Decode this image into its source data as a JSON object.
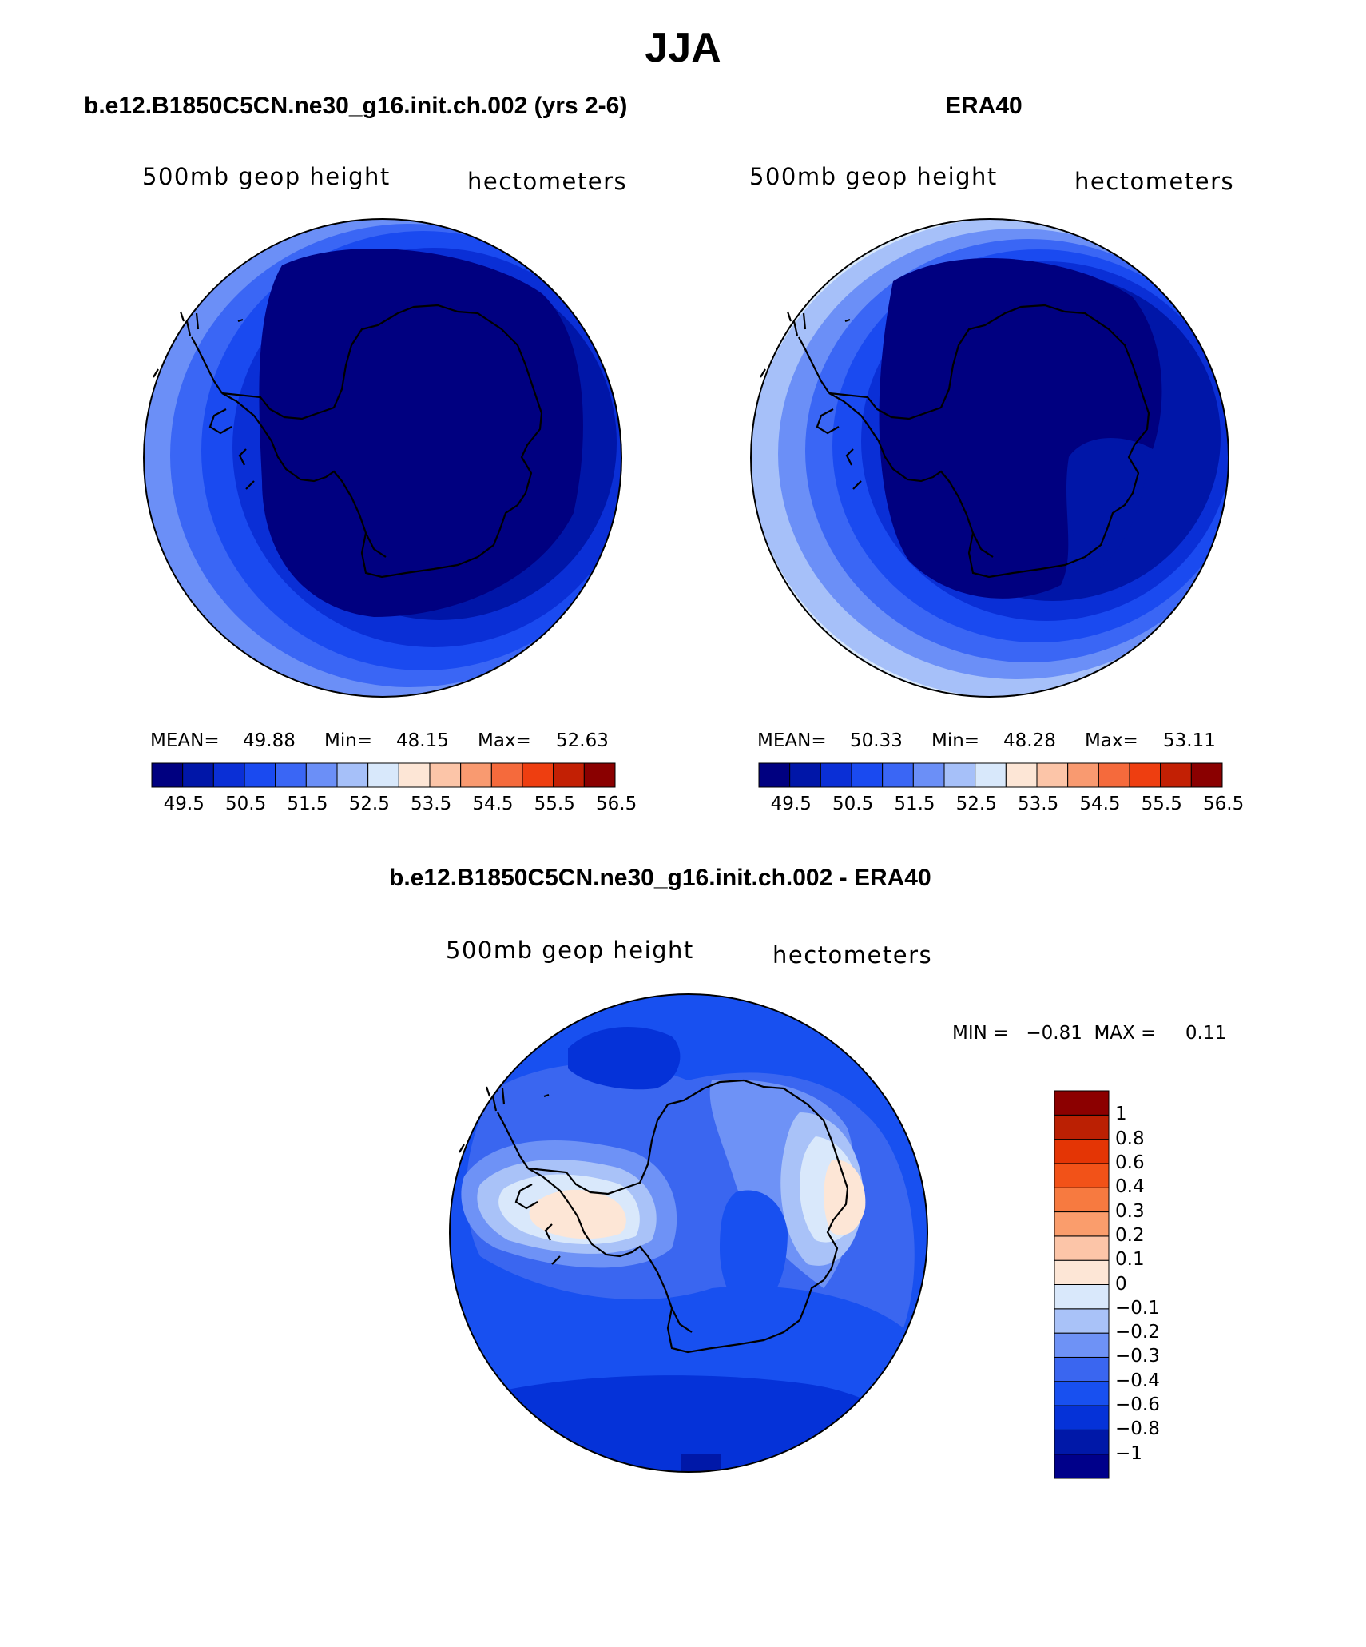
{
  "title": "JJA",
  "panels": {
    "model": {
      "title": "b.e12.B1850C5CN.ne30_g16.init.ch.002 (yrs 2-6)",
      "variable": "500mb geop height",
      "units": "hectometers",
      "stats": {
        "mean_label": "MEAN=",
        "mean": "49.88",
        "min_label": "Min=",
        "min": "48.15",
        "max_label": "Max=",
        "max": "52.63"
      }
    },
    "obs": {
      "title": "ERA40",
      "variable": "500mb geop height",
      "units": "hectometers",
      "stats": {
        "mean_label": "MEAN=",
        "mean": "50.33",
        "min_label": "Min=",
        "min": "48.28",
        "max_label": "Max=",
        "max": "53.11"
      }
    },
    "diff": {
      "title": "b.e12.B1850C5CN.ne30_g16.init.ch.002 - ERA40",
      "variable": "500mb geop height",
      "units": "hectometers",
      "minmax": "MIN =   −0.81  MAX =     0.11"
    }
  },
  "colorbar_main": {
    "colors": [
      "#000080",
      "#0016a8",
      "#0a2fd6",
      "#1a4af0",
      "#3a66f5",
      "#6b8ff7",
      "#a6c0f9",
      "#d8e8fb",
      "#fde6d6",
      "#fcc5a8",
      "#f99a70",
      "#f56a3c",
      "#ee3e10",
      "#c32004",
      "#8a0000"
    ],
    "ticks": [
      "49.5",
      "50.5",
      "51.5",
      "52.5",
      "53.5",
      "54.5",
      "55.5",
      "56.5"
    ]
  },
  "colorbar_diff": {
    "colors": [
      "#00008a",
      "#0018a8",
      "#0532d8",
      "#1850f0",
      "#3a66f0",
      "#6e92f6",
      "#a9c2f8",
      "#d9e8fb",
      "#fde6d6",
      "#fcc5a8",
      "#fa9d6c",
      "#f77a40",
      "#f25218",
      "#e43505",
      "#bb2003",
      "#8c0000"
    ],
    "ticks": [
      "1",
      "0.8",
      "0.6",
      "0.4",
      "0.3",
      "0.2",
      "0.1",
      "0",
      "−0.1",
      "−0.2",
      "−0.3",
      "−0.4",
      "−0.6",
      "−0.8",
      "−1"
    ]
  }
}
